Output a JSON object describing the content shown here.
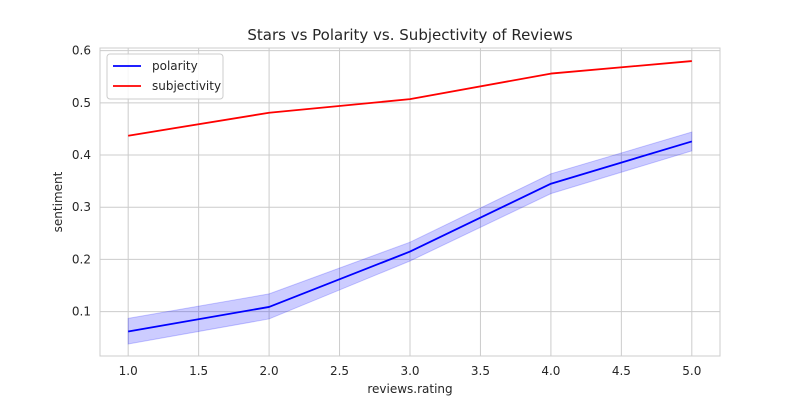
{
  "chart_data": {
    "type": "line",
    "title": "Stars vs Polarity vs. Subjectivity of Reviews",
    "xlabel": "reviews.rating",
    "ylabel": "sentiment",
    "x": [
      1.0,
      2.0,
      3.0,
      4.0,
      5.0
    ],
    "xlim": [
      0.8,
      5.2
    ],
    "ylim": [
      0.015,
      0.605
    ],
    "xticks": [
      "1.0",
      "1.5",
      "2.0",
      "2.5",
      "3.0",
      "3.5",
      "4.0",
      "4.5",
      "5.0"
    ],
    "yticks": [
      "0.1",
      "0.2",
      "0.3",
      "0.4",
      "0.5",
      "0.6"
    ],
    "grid": true,
    "legend_position": "top-left",
    "series": [
      {
        "name": "polarity",
        "color": "#0000ff",
        "values": [
          0.062,
          0.109,
          0.215,
          0.345,
          0.426
        ],
        "ci_lower": [
          0.038,
          0.086,
          0.197,
          0.326,
          0.408
        ],
        "ci_upper": [
          0.087,
          0.134,
          0.233,
          0.364,
          0.444
        ],
        "ci_color": "#0000ff"
      },
      {
        "name": "subjectivity",
        "color": "#ff0000",
        "values": [
          0.437,
          0.481,
          0.507,
          0.556,
          0.58
        ]
      }
    ]
  }
}
